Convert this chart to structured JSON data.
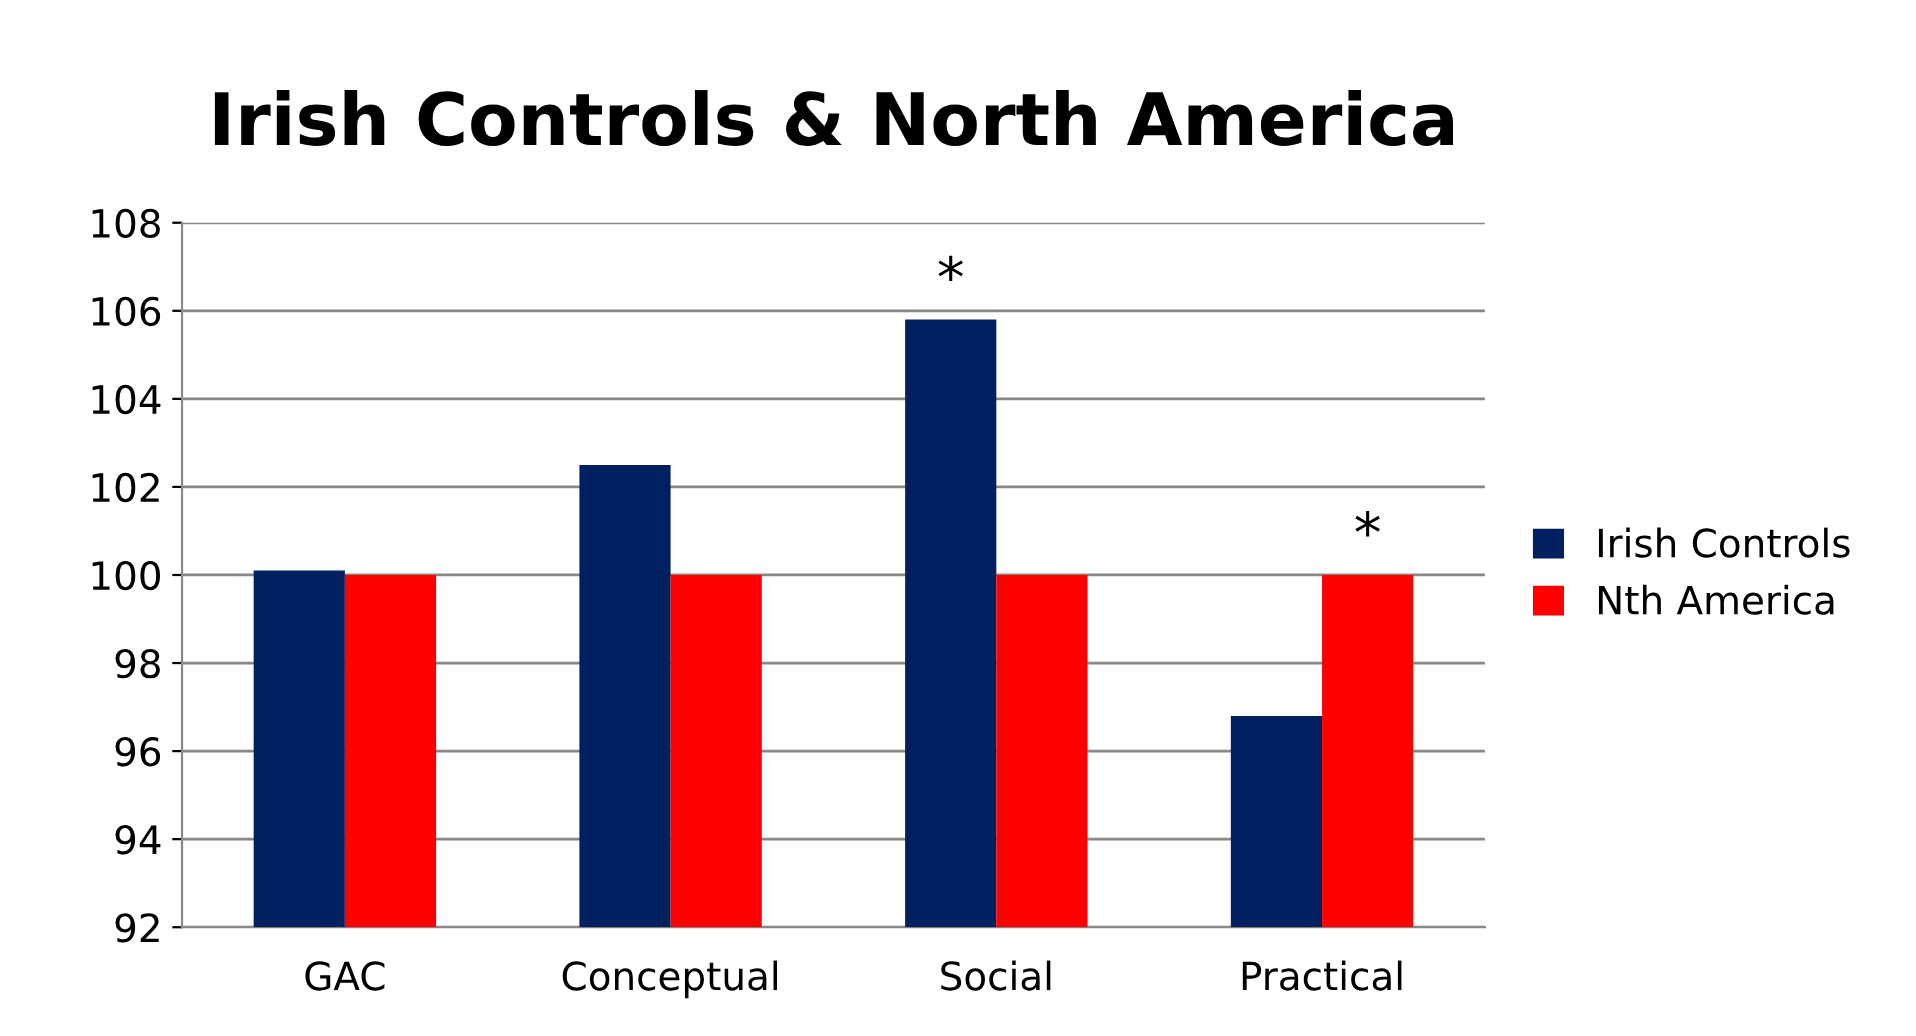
{
  "chart_data": {
    "type": "bar",
    "title": "Irish Controls & North America",
    "categories": [
      "GAC",
      "Conceptual",
      "Social",
      "Practical"
    ],
    "series": [
      {
        "name": "Irish Controls",
        "color": "#002060",
        "values": [
          100.1,
          102.5,
          105.8,
          96.8
        ]
      },
      {
        "name": "Nth America",
        "color": "#ff0000",
        "values": [
          100,
          100,
          100,
          100
        ]
      }
    ],
    "ylim": [
      92,
      108
    ],
    "yticks": [
      92,
      94,
      96,
      98,
      100,
      102,
      104,
      106,
      108
    ],
    "grid": "y",
    "legend": "right",
    "annotations": [
      {
        "text": "*",
        "x": "Social",
        "y": 105.8
      },
      {
        "text": "*",
        "x": "Practical",
        "y": 100
      }
    ]
  }
}
